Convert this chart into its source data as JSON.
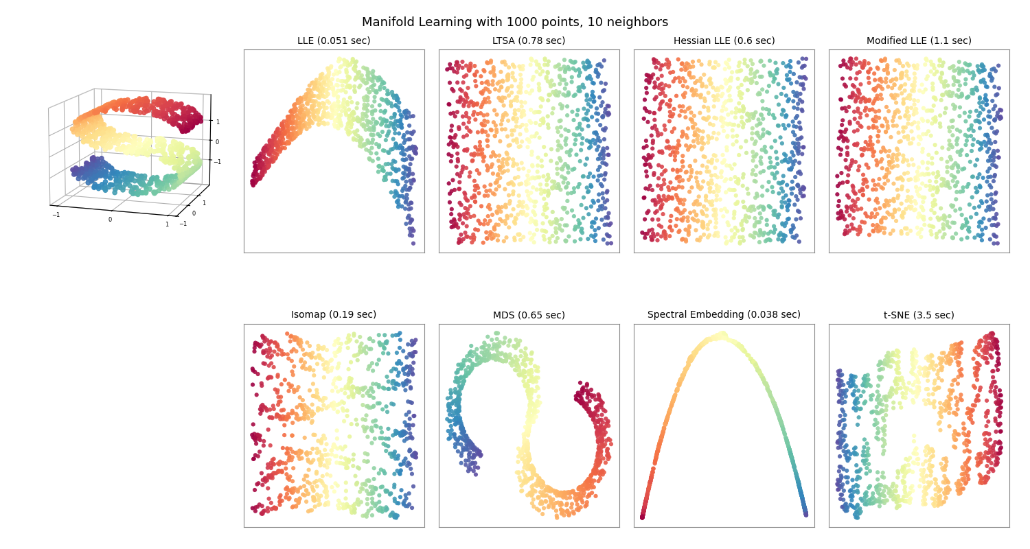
{
  "title": "Manifold Learning with 1000 points, 10 neighbors",
  "n_points": 1000,
  "n_neighbors": 10,
  "random_state": 0,
  "methods": [
    {
      "name": "LLE",
      "time": "0.051 sec",
      "row": 0,
      "col": 1
    },
    {
      "name": "LTSA",
      "time": "0.78 sec",
      "row": 0,
      "col": 2
    },
    {
      "name": "Hessian LLE",
      "time": "0.6 sec",
      "row": 0,
      "col": 3
    },
    {
      "name": "Modified LLE",
      "time": "1.1 sec",
      "row": 0,
      "col": 4
    },
    {
      "name": "Isomap",
      "time": "0.19 sec",
      "row": 1,
      "col": 1
    },
    {
      "name": "MDS",
      "time": "0.65 sec",
      "row": 1,
      "col": 2
    },
    {
      "name": "Spectral Embedding",
      "time": "0.038 sec",
      "row": 1,
      "col": 3
    },
    {
      "name": "t-SNE",
      "time": "3.5 sec",
      "row": 1,
      "col": 4
    }
  ],
  "cmap": "Spectral",
  "point_size": 20,
  "alpha": 0.9,
  "background_color": "#ffffff",
  "title_fontsize": 13,
  "subplot_title_fontsize": 10,
  "figsize": [
    15.0,
    8.0
  ],
  "dpi": 100
}
